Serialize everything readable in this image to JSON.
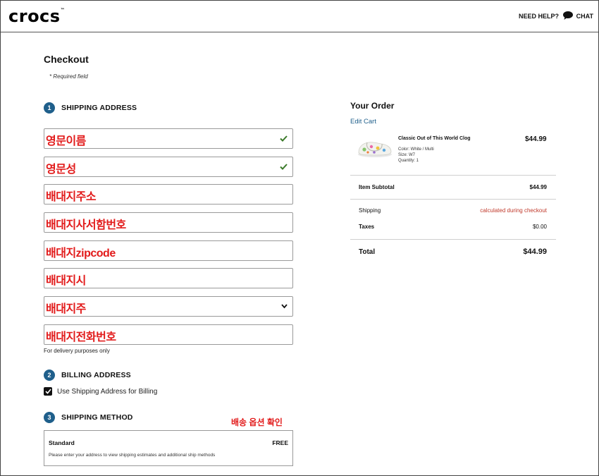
{
  "header": {
    "logo": "crocs",
    "logo_tm": "™",
    "help_label": "NEED HELP?",
    "chat_label": "CHAT"
  },
  "checkout": {
    "title": "Checkout",
    "required_note": "* Required field"
  },
  "shipping": {
    "step": "1",
    "label": "SHIPPING ADDRESS",
    "fields": [
      {
        "annotation": "영문이름"
      },
      {
        "annotation": "영문성"
      },
      {
        "annotation": "배대지주소"
      },
      {
        "annotation": "배대지사서함번호"
      },
      {
        "annotation": "배대지zipcode"
      },
      {
        "annotation": "배대지시"
      },
      {
        "annotation": "배대지주"
      },
      {
        "annotation": "배대지전화번호"
      }
    ],
    "phone_hint": "For delivery purposes only"
  },
  "billing": {
    "step": "2",
    "label": "BILLING ADDRESS",
    "checkbox_label": "Use Shipping Address for Billing"
  },
  "method": {
    "step": "3",
    "label": "SHIPPING METHOD",
    "annotation": "배송 옵션 확인",
    "option_name": "Standard",
    "option_price": "FREE",
    "option_desc": "Please enter your address to view shipping estimates and additional ship methods"
  },
  "order": {
    "title": "Your Order",
    "edit_cart": "Edit Cart",
    "product": {
      "name": "Classic Out of This World Clog",
      "color": "Color:  White / Multi",
      "size": "Size:  W7",
      "quantity": "Quantity: 1",
      "price": "$44.99"
    },
    "subtotal_label": "Item Subtotal",
    "subtotal_value": "$44.99",
    "shipping_label": "Shipping",
    "shipping_value": "calculated during checkout",
    "taxes_label": "Taxes",
    "taxes_value": "$0.00",
    "total_label": "Total",
    "total_value": "$44.99"
  },
  "colors": {
    "accent": "#1f5f8b",
    "annotation": "#e21b1b",
    "check": "#3b7a2a"
  }
}
